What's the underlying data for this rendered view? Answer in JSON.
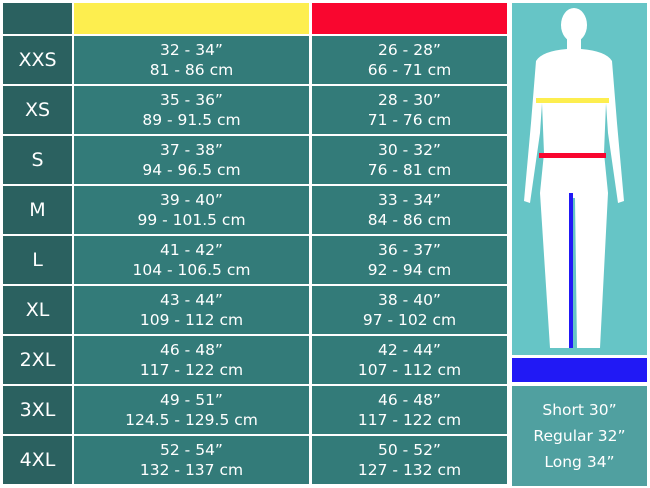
{
  "colors": {
    "chest": "#fdee4f",
    "waist": "#f9062f",
    "inseam": "#2119f5"
  },
  "rows": [
    {
      "size": "XXS",
      "chest_in": "32 - 34”",
      "chest_cm": "81 - 86 cm",
      "waist_in": "26 - 28”",
      "waist_cm": "66 - 71 cm"
    },
    {
      "size": "XS",
      "chest_in": "35 - 36”",
      "chest_cm": "89 - 91.5 cm",
      "waist_in": "28 - 30”",
      "waist_cm": "71 - 76 cm"
    },
    {
      "size": "S",
      "chest_in": "37 - 38”",
      "chest_cm": "94 - 96.5 cm",
      "waist_in": "30 - 32”",
      "waist_cm": "76 - 81 cm"
    },
    {
      "size": "M",
      "chest_in": "39 - 40”",
      "chest_cm": "99 - 101.5 cm",
      "waist_in": "33 - 34”",
      "waist_cm": "84 - 86 cm"
    },
    {
      "size": "L",
      "chest_in": "41 - 42”",
      "chest_cm": "104 - 106.5 cm",
      "waist_in": "36 - 37”",
      "waist_cm": "92 - 94 cm"
    },
    {
      "size": "XL",
      "chest_in": "43 - 44”",
      "chest_cm": "109 - 112 cm",
      "waist_in": "38 - 40”",
      "waist_cm": "97 - 102 cm"
    },
    {
      "size": "2XL",
      "chest_in": "46 - 48”",
      "chest_cm": "117 - 122 cm",
      "waist_in": "42 - 44”",
      "waist_cm": "107 - 112 cm"
    },
    {
      "size": "3XL",
      "chest_in": "49 - 51”",
      "chest_cm": "124.5 - 129.5 cm",
      "waist_in": "46 - 48”",
      "waist_cm": "117 - 122 cm"
    },
    {
      "size": "4XL",
      "chest_in": "52 - 54”",
      "chest_cm": "132 - 137 cm",
      "waist_in": "50 - 52”",
      "waist_cm": "127 - 132 cm"
    }
  ],
  "inseam": [
    "Short 30”",
    "Regular 32”",
    "Long 34”"
  ]
}
